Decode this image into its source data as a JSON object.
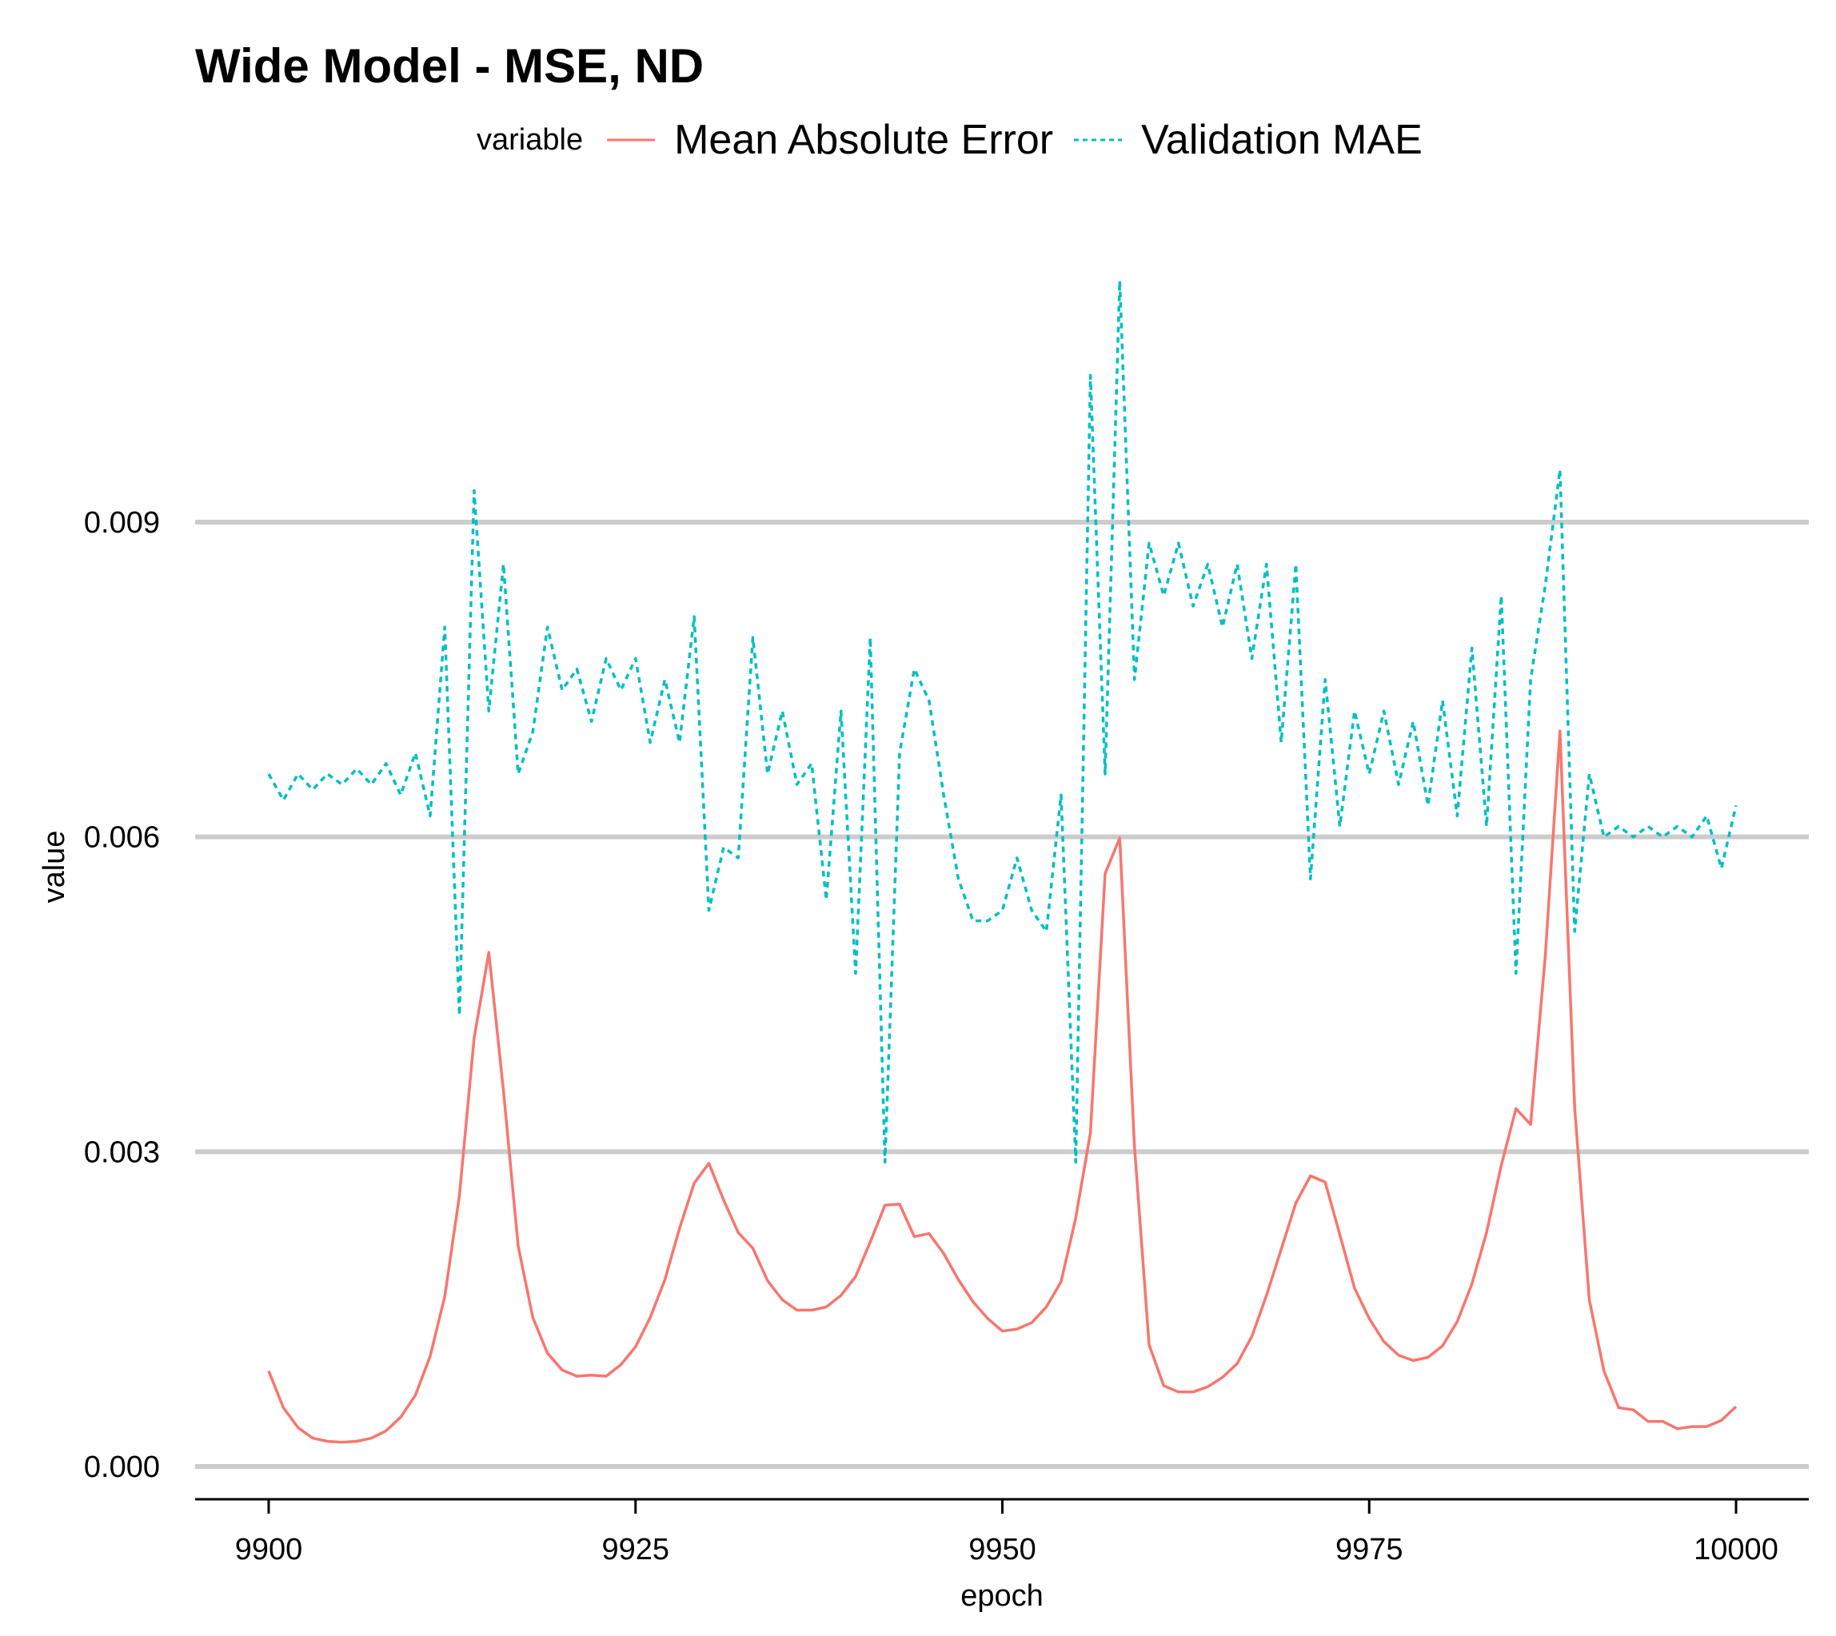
{
  "chart_data": {
    "type": "line",
    "title": "Wide Model - MSE, ND",
    "xlabel": "epoch",
    "ylabel": "value",
    "xlim": [
      9895,
      10005
    ],
    "ylim": [
      -0.00033,
      0.0113
    ],
    "x_ticks": [
      9900,
      9925,
      9950,
      9975,
      10000
    ],
    "x_tick_labels": [
      "9900",
      "9925",
      "9950",
      "9975",
      "10000"
    ],
    "y_ticks": [
      0.0,
      0.003,
      0.006,
      0.009
    ],
    "y_tick_labels": [
      "0.000",
      "0.003",
      "0.006",
      "0.009"
    ],
    "grid": "horizontal major",
    "legend": {
      "title": "variable",
      "position": "top"
    },
    "x": [
      9900,
      9901,
      9902,
      9903,
      9904,
      9905,
      9906,
      9907,
      9908,
      9909,
      9910,
      9911,
      9912,
      9913,
      9914,
      9915,
      9916,
      9917,
      9918,
      9919,
      9920,
      9921,
      9922,
      9923,
      9924,
      9925,
      9926,
      9927,
      9928,
      9929,
      9930,
      9931,
      9932,
      9933,
      9934,
      9935,
      9936,
      9937,
      9938,
      9939,
      9940,
      9941,
      9942,
      9943,
      9944,
      9945,
      9946,
      9947,
      9948,
      9949,
      9950,
      9951,
      9952,
      9953,
      9954,
      9955,
      9956,
      9957,
      9958,
      9959,
      9960,
      9961,
      9962,
      9963,
      9964,
      9965,
      9966,
      9967,
      9968,
      9969,
      9970,
      9971,
      9972,
      9973,
      9974,
      9975,
      9976,
      9977,
      9978,
      9979,
      9980,
      9981,
      9982,
      9983,
      9984,
      9985,
      9986,
      9987,
      9988,
      9989,
      9990,
      9991,
      9992,
      9993,
      9994,
      9995,
      9996,
      9997,
      9998,
      9999,
      10000
    ],
    "series": [
      {
        "name": "Mean Absolute Error",
        "color": "#F8766D",
        "linetype": "solid",
        "values": [
          0.00091,
          0.00056,
          0.00037,
          0.00027,
          0.00024,
          0.00023,
          0.00024,
          0.00027,
          0.00034,
          0.00047,
          0.00068,
          0.00105,
          0.00162,
          0.00258,
          0.00408,
          0.0049,
          0.00358,
          0.0021,
          0.00142,
          0.00108,
          0.00092,
          0.00086,
          0.00087,
          0.00086,
          0.00097,
          0.00114,
          0.00142,
          0.00178,
          0.00227,
          0.0027,
          0.00289,
          0.00254,
          0.00223,
          0.00208,
          0.00177,
          0.00159,
          0.00149,
          0.00149,
          0.00152,
          0.00163,
          0.00181,
          0.00214,
          0.00249,
          0.0025,
          0.00219,
          0.00222,
          0.00203,
          0.00178,
          0.00157,
          0.00141,
          0.00129,
          0.00131,
          0.00137,
          0.00152,
          0.00176,
          0.00237,
          0.00318,
          0.00565,
          0.00599,
          0.00305,
          0.00116,
          0.00077,
          0.00071,
          0.00071,
          0.00076,
          0.00085,
          0.00098,
          0.00124,
          0.00163,
          0.00207,
          0.00251,
          0.00277,
          0.00271,
          0.00221,
          0.0017,
          0.00141,
          0.00119,
          0.00106,
          0.00101,
          0.00104,
          0.00115,
          0.00138,
          0.00174,
          0.00223,
          0.00287,
          0.00341,
          0.00326,
          0.00487,
          0.00701,
          0.00342,
          0.00159,
          0.00091,
          0.00056,
          0.00054,
          0.00043,
          0.00043,
          0.00036,
          0.00038,
          0.00038,
          0.00044,
          0.00057
        ]
      },
      {
        "name": "Validation MAE",
        "color": "#00BFC4",
        "linetype": "dashed",
        "values": [
          0.0066,
          0.00635,
          0.0066,
          0.00645,
          0.0066,
          0.0065,
          0.00665,
          0.0065,
          0.0067,
          0.0064,
          0.0068,
          0.0062,
          0.008,
          0.0043,
          0.0093,
          0.0072,
          0.0086,
          0.0066,
          0.007,
          0.008,
          0.0074,
          0.0076,
          0.0071,
          0.0077,
          0.0074,
          0.0077,
          0.0069,
          0.0075,
          0.0069,
          0.0081,
          0.0053,
          0.0059,
          0.0058,
          0.0079,
          0.0066,
          0.0072,
          0.0065,
          0.0067,
          0.0054,
          0.0072,
          0.0047,
          0.0079,
          0.0029,
          0.0068,
          0.0076,
          0.0073,
          0.0064,
          0.0056,
          0.0052,
          0.0052,
          0.0053,
          0.0058,
          0.0053,
          0.0051,
          0.0064,
          0.0029,
          0.0104,
          0.0066,
          0.0113,
          0.0075,
          0.0088,
          0.0083,
          0.0088,
          0.0082,
          0.0086,
          0.008,
          0.0086,
          0.0077,
          0.0086,
          0.0069,
          0.0086,
          0.0056,
          0.0075,
          0.0061,
          0.0072,
          0.0066,
          0.0072,
          0.0065,
          0.0071,
          0.0063,
          0.0073,
          0.0062,
          0.0078,
          0.0061,
          0.0083,
          0.0047,
          0.0075,
          0.0084,
          0.0095,
          0.0051,
          0.0066,
          0.006,
          0.0061,
          0.006,
          0.0061,
          0.006,
          0.0061,
          0.006,
          0.0062,
          0.0057,
          0.0063
        ]
      }
    ]
  }
}
